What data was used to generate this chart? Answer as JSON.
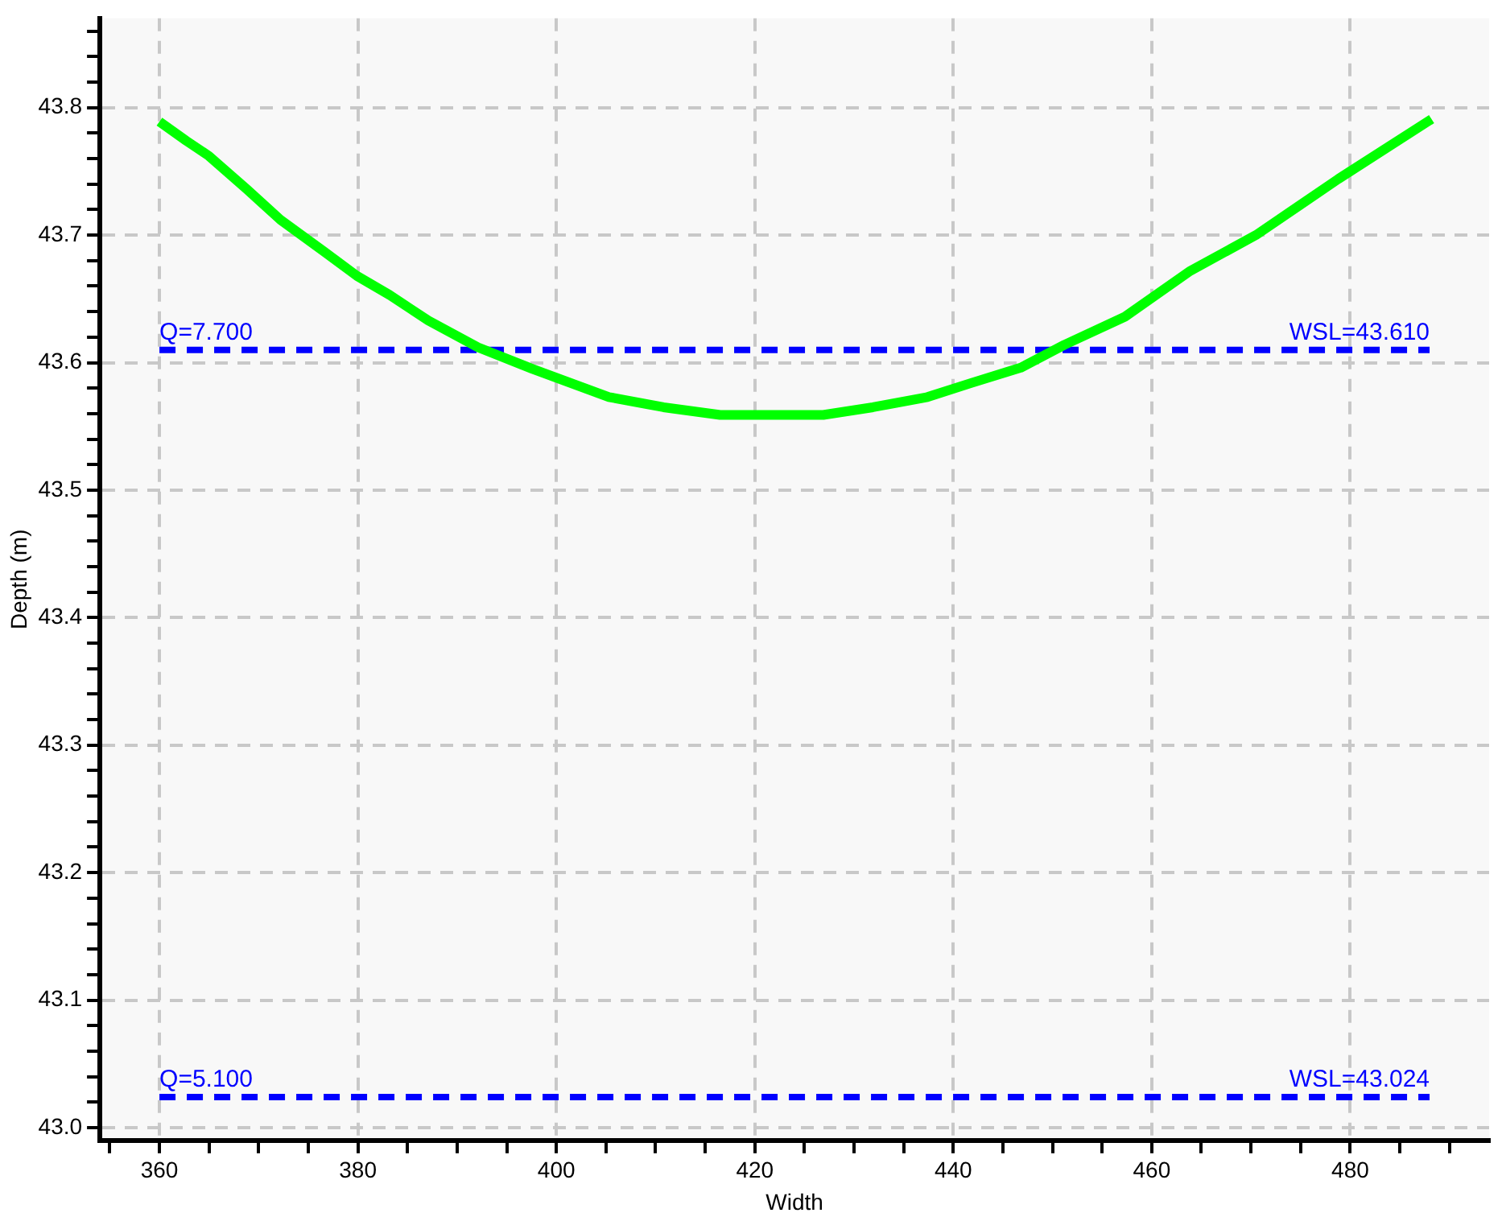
{
  "chart_data": {
    "type": "line",
    "xlabel": "Width",
    "ylabel": "Depth (m)",
    "xlim": [
      354,
      494
    ],
    "ylim": [
      42.99,
      43.87
    ],
    "xticks": [
      {
        "value": 355,
        "label": null
      },
      360,
      {
        "value": 365,
        "label": null
      },
      {
        "value": 370,
        "label": null
      },
      {
        "value": 375,
        "label": null
      },
      380,
      {
        "value": 385,
        "label": null
      },
      {
        "value": 390,
        "label": null
      },
      {
        "value": 395,
        "label": null
      },
      400,
      {
        "value": 405,
        "label": null
      },
      {
        "value": 410,
        "label": null
      },
      {
        "value": 415,
        "label": null
      },
      420,
      {
        "value": 425,
        "label": null
      },
      {
        "value": 430,
        "label": null
      },
      {
        "value": 435,
        "label": null
      },
      440,
      {
        "value": 445,
        "label": null
      },
      {
        "value": 450,
        "label": null
      },
      {
        "value": 455,
        "label": null
      },
      460,
      {
        "value": 465,
        "label": null
      },
      {
        "value": 470,
        "label": null
      },
      {
        "value": 475,
        "label": null
      },
      480,
      {
        "value": 485,
        "label": null
      },
      {
        "value": 490,
        "label": null
      }
    ],
    "yticks": [
      {
        "value": 43.0,
        "label": "43.0"
      },
      {
        "value": 43.02,
        "label": null
      },
      {
        "value": 43.04,
        "label": null
      },
      {
        "value": 43.06,
        "label": null
      },
      {
        "value": 43.08,
        "label": null
      },
      43.1,
      {
        "value": 43.12,
        "label": null
      },
      {
        "value": 43.14,
        "label": null
      },
      {
        "value": 43.16,
        "label": null
      },
      {
        "value": 43.18,
        "label": null
      },
      43.2,
      {
        "value": 43.22,
        "label": null
      },
      {
        "value": 43.24,
        "label": null
      },
      {
        "value": 43.26,
        "label": null
      },
      {
        "value": 43.28,
        "label": null
      },
      43.3,
      {
        "value": 43.32,
        "label": null
      },
      {
        "value": 43.34,
        "label": null
      },
      {
        "value": 43.36,
        "label": null
      },
      {
        "value": 43.38,
        "label": null
      },
      43.4,
      {
        "value": 43.42,
        "label": null
      },
      {
        "value": 43.44,
        "label": null
      },
      {
        "value": 43.46,
        "label": null
      },
      {
        "value": 43.48,
        "label": null
      },
      43.5,
      {
        "value": 43.52,
        "label": null
      },
      {
        "value": 43.54,
        "label": null
      },
      {
        "value": 43.56,
        "label": null
      },
      {
        "value": 43.58,
        "label": null
      },
      43.6,
      {
        "value": 43.62,
        "label": null
      },
      {
        "value": 43.64,
        "label": null
      },
      {
        "value": 43.66,
        "label": null
      },
      {
        "value": 43.68,
        "label": null
      },
      43.7,
      {
        "value": 43.72,
        "label": null
      },
      {
        "value": 43.74,
        "label": null
      },
      {
        "value": 43.76,
        "label": null
      },
      {
        "value": 43.78,
        "label": null
      },
      43.8,
      {
        "value": 43.82,
        "label": null
      },
      {
        "value": 43.84,
        "label": null
      },
      {
        "value": 43.86,
        "label": null
      }
    ],
    "grid": true,
    "marker": "none",
    "series": [
      {
        "color": "#00ff00",
        "line_style": "solid",
        "x": [
          360,
          362.7,
          365,
          368.8,
          372.2,
          376.6,
          379.9,
          383.2,
          387.1,
          392.1,
          397.6,
          405.3,
          410.8,
          416.5,
          421,
          426.9,
          431.9,
          437.4,
          441.8,
          446.8,
          451.2,
          457.3,
          463.9,
          470.5,
          478.8,
          488.2
        ],
        "values": [
          43.789,
          43.774,
          43.762,
          43.736,
          43.712,
          43.687,
          43.668,
          43.653,
          43.633,
          43.612,
          43.595,
          43.573,
          43.565,
          43.559,
          43.559,
          43.559,
          43.565,
          43.573,
          43.584,
          43.596,
          43.614,
          43.636,
          43.672,
          43.7,
          43.744,
          43.791
        ]
      },
      {
        "color": "#0000ff",
        "line_style": "dashed",
        "x": [
          360,
          488
        ],
        "values": [
          43.61,
          43.61
        ]
      },
      {
        "color": "#0000ff",
        "line_style": "dashed",
        "x": [
          360,
          488
        ],
        "values": [
          43.024,
          43.024
        ]
      }
    ],
    "annotations": [
      "Q=7.700",
      "WSL=43.610",
      "Q=5.100",
      "WSL=43.024"
    ]
  }
}
